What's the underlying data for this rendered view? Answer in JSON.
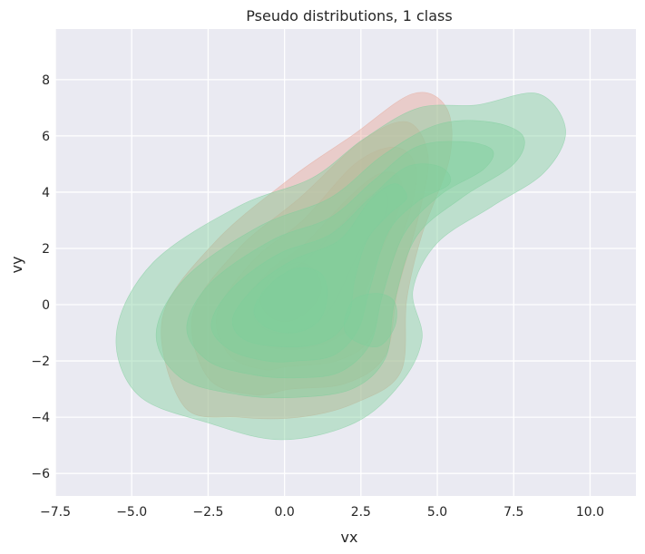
{
  "chart_data": {
    "type": "kde",
    "title": "Pseudo distributions, 1 class",
    "xlabel": "vx",
    "ylabel": "vy",
    "xlim": [
      -7.5,
      11.5
    ],
    "ylim": [
      -6.8,
      9.8
    ],
    "xticks": [
      -7.5,
      -5.0,
      -2.5,
      0.0,
      2.5,
      5.0,
      7.5,
      10.0
    ],
    "xtick_labels": [
      "−7.5",
      "−5.0",
      "−2.5",
      "0.0",
      "2.5",
      "5.0",
      "7.5",
      "10.0"
    ],
    "yticks": [
      -6,
      -4,
      -2,
      0,
      2,
      4,
      6,
      8
    ],
    "ytick_labels": [
      "−6",
      "−4",
      "−2",
      "0",
      "2",
      "4",
      "6",
      "8"
    ],
    "grid": true,
    "background": "#eaeaf2",
    "series": [
      {
        "color": "#e8a89a",
        "opacity": 0.45,
        "contours": [
          [
            [
              0.5,
              -4.0
            ],
            [
              2.3,
              -3.5
            ],
            [
              3.8,
              -2.4
            ],
            [
              4.0,
              0.2
            ],
            [
              4.5,
              2.5
            ],
            [
              5.4,
              5.2
            ],
            [
              5.3,
              7.0
            ],
            [
              4.2,
              7.5
            ],
            [
              2.2,
              6.0
            ],
            [
              0.2,
              4.5
            ],
            [
              -2.3,
              2.2
            ],
            [
              -4.0,
              -0.5
            ],
            [
              -3.3,
              -3.6
            ],
            [
              -1.5,
              -4.0
            ]
          ],
          [
            [
              0.2,
              -3.0
            ],
            [
              2.0,
              -2.8
            ],
            [
              3.3,
              -1.8
            ],
            [
              3.7,
              0.5
            ],
            [
              4.4,
              3.2
            ],
            [
              4.7,
              5.3
            ],
            [
              4.0,
              6.5
            ],
            [
              2.5,
              5.8
            ],
            [
              0.5,
              3.8
            ],
            [
              -1.5,
              2.0
            ],
            [
              -3.0,
              -0.3
            ],
            [
              -2.5,
              -2.6
            ],
            [
              -1.0,
              -3.2
            ]
          ],
          [
            [
              0.1,
              -2.2
            ],
            [
              1.7,
              -2.0
            ],
            [
              2.8,
              -1.2
            ],
            [
              3.3,
              0.8
            ],
            [
              4.1,
              3.3
            ],
            [
              4.3,
              4.9
            ],
            [
              3.6,
              5.6
            ],
            [
              2.3,
              5.0
            ],
            [
              0.6,
              3.0
            ],
            [
              -1.0,
              1.6
            ],
            [
              -2.2,
              -0.3
            ],
            [
              -1.8,
              -1.8
            ],
            [
              -0.7,
              -2.3
            ]
          ],
          [
            [
              0.1,
              -1.6
            ],
            [
              1.5,
              -1.3
            ],
            [
              2.3,
              -0.5
            ],
            [
              3.0,
              1.5
            ],
            [
              3.8,
              3.6
            ],
            [
              3.7,
              4.6
            ],
            [
              3.0,
              4.6
            ],
            [
              2.0,
              3.7
            ],
            [
              0.7,
              2.2
            ],
            [
              -0.5,
              1.2
            ],
            [
              -1.5,
              -0.2
            ],
            [
              -1.2,
              -1.2
            ]
          ],
          [
            [
              0.2,
              -1.0
            ],
            [
              1.1,
              -0.6
            ],
            [
              1.7,
              0.2
            ],
            [
              2.5,
              2.0
            ],
            [
              3.3,
              3.2
            ],
            [
              3.3,
              4.0
            ],
            [
              2.7,
              3.8
            ],
            [
              1.8,
              2.8
            ],
            [
              0.7,
              1.6
            ],
            [
              -0.4,
              0.8
            ],
            [
              -1.0,
              -0.3
            ],
            [
              -0.6,
              -0.9
            ]
          ],
          [
            [
              0.1,
              -0.6
            ],
            [
              0.8,
              -0.2
            ],
            [
              1.2,
              0.5
            ],
            [
              1.0,
              1.2
            ],
            [
              0.4,
              1.5
            ],
            [
              -0.4,
              1.0
            ],
            [
              -0.8,
              0.2
            ],
            [
              -0.5,
              -0.4
            ]
          ]
        ]
      },
      {
        "color": "#7fcf9c",
        "opacity": 0.42,
        "contours": [
          [
            [
              -0.1,
              -4.8
            ],
            [
              2.3,
              -4.2
            ],
            [
              3.8,
              -2.8
            ],
            [
              4.5,
              -1.2
            ],
            [
              4.2,
              0.5
            ],
            [
              5.0,
              2.2
            ],
            [
              6.8,
              3.5
            ],
            [
              8.5,
              4.7
            ],
            [
              9.2,
              6.2
            ],
            [
              8.3,
              7.5
            ],
            [
              6.3,
              7.1
            ],
            [
              4.4,
              7.0
            ],
            [
              2.6,
              5.9
            ],
            [
              0.9,
              4.5
            ],
            [
              -1.5,
              3.5
            ],
            [
              -4.3,
              1.5
            ],
            [
              -5.5,
              -1.0
            ],
            [
              -4.8,
              -3.2
            ],
            [
              -2.5,
              -4.2
            ]
          ],
          [
            [
              0.3,
              -3.3
            ],
            [
              2.2,
              -3.0
            ],
            [
              3.3,
              -1.9
            ],
            [
              3.6,
              0.1
            ],
            [
              4.3,
              2.4
            ],
            [
              5.8,
              3.8
            ],
            [
              7.5,
              5.0
            ],
            [
              7.8,
              6.0
            ],
            [
              6.7,
              6.5
            ],
            [
              5.0,
              6.4
            ],
            [
              3.2,
              5.3
            ],
            [
              1.5,
              3.8
            ],
            [
              -0.8,
              2.8
            ],
            [
              -3.2,
              1.0
            ],
            [
              -4.2,
              -1.0
            ],
            [
              -3.4,
              -2.6
            ],
            [
              -1.5,
              -3.2
            ]
          ],
          [
            [
              0.4,
              -2.6
            ],
            [
              1.8,
              -2.4
            ],
            [
              2.8,
              -1.4
            ],
            [
              3.2,
              0.3
            ],
            [
              3.9,
              2.5
            ],
            [
              5.1,
              3.9
            ],
            [
              6.5,
              4.8
            ],
            [
              6.8,
              5.5
            ],
            [
              5.8,
              5.8
            ],
            [
              4.3,
              5.6
            ],
            [
              2.9,
              4.4
            ],
            [
              1.5,
              3.1
            ],
            [
              -0.4,
              2.3
            ],
            [
              -2.4,
              0.8
            ],
            [
              -3.2,
              -0.8
            ],
            [
              -2.5,
              -2.0
            ],
            [
              -1.0,
              -2.5
            ]
          ],
          [
            [
              0.4,
              -2.0
            ],
            [
              1.6,
              -1.8
            ],
            [
              2.4,
              -0.9
            ],
            [
              2.8,
              0.6
            ],
            [
              3.4,
              2.6
            ],
            [
              4.4,
              3.7
            ],
            [
              5.4,
              4.3
            ],
            [
              5.1,
              4.9
            ],
            [
              4.0,
              4.9
            ],
            [
              2.8,
              3.8
            ],
            [
              1.5,
              2.5
            ],
            [
              -0.2,
              1.8
            ],
            [
              -1.7,
              0.6
            ],
            [
              -2.4,
              -0.7
            ],
            [
              -1.8,
              -1.6
            ],
            [
              -0.6,
              -2.0
            ]
          ],
          [
            [
              0.4,
              -1.5
            ],
            [
              1.5,
              -1.2
            ],
            [
              2.1,
              -0.4
            ],
            [
              2.3,
              0.9
            ],
            [
              2.7,
              2.3
            ],
            [
              3.4,
              3.2
            ],
            [
              4.0,
              3.8
            ],
            [
              3.6,
              4.3
            ],
            [
              2.8,
              3.7
            ],
            [
              1.8,
              2.3
            ],
            [
              0.3,
              1.6
            ],
            [
              -0.9,
              0.7
            ],
            [
              -1.7,
              -0.5
            ],
            [
              -1.2,
              -1.3
            ]
          ],
          [
            [
              0.3,
              -1.0
            ],
            [
              1.1,
              -0.6
            ],
            [
              1.4,
              0.3
            ],
            [
              1.2,
              1.1
            ],
            [
              0.4,
              1.3
            ],
            [
              -0.5,
              0.7
            ],
            [
              -1.0,
              -0.2
            ],
            [
              -0.6,
              -0.8
            ]
          ],
          [
            [
              2.0,
              -1.0
            ],
            [
              3.0,
              -1.5
            ],
            [
              3.6,
              -0.8
            ],
            [
              3.6,
              0.1
            ],
            [
              3.0,
              0.4
            ],
            [
              2.2,
              0.1
            ]
          ]
        ]
      }
    ]
  }
}
